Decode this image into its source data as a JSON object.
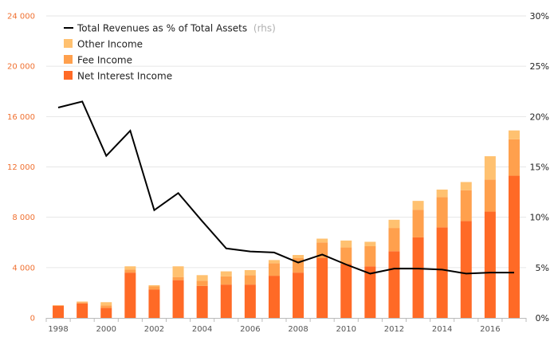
{
  "chart_data": {
    "type": "bar",
    "stacked": true,
    "x": [
      "1998",
      "1999",
      "2000",
      "2001",
      "2002",
      "2003",
      "2004",
      "2005",
      "2006",
      "2007",
      "2008",
      "2009",
      "2010",
      "2011",
      "2012",
      "2013",
      "2014",
      "2015",
      "2016",
      "2017"
    ],
    "x_tick_labels": [
      "1998",
      "2000",
      "2002",
      "2004",
      "2006",
      "2008",
      "2010",
      "2012",
      "2014",
      "2016"
    ],
    "series": [
      {
        "name": "Net Interest Income",
        "color": "#ff6a26",
        "values": [
          950,
          1150,
          800,
          3600,
          2250,
          3000,
          2550,
          2650,
          2650,
          3350,
          3600,
          4750,
          4300,
          4100,
          5300,
          6400,
          7200,
          7700,
          8450,
          11300
        ]
      },
      {
        "name": "Fee Income",
        "color": "#ffa04d",
        "values": [
          50,
          100,
          200,
          250,
          250,
          250,
          400,
          650,
          750,
          1000,
          1150,
          1250,
          1300,
          1600,
          1850,
          2200,
          2400,
          2450,
          2550,
          2900
        ]
      },
      {
        "name": "Other Income",
        "color": "#ffc170",
        "values": [
          0,
          50,
          250,
          250,
          100,
          850,
          450,
          400,
          400,
          250,
          250,
          300,
          550,
          350,
          650,
          700,
          600,
          650,
          1850,
          700
        ]
      }
    ],
    "line_series": {
      "name": "Total Revenues as % of Total Assets",
      "legend_suffix": "(rhs)",
      "axis": "right",
      "color": "#000000",
      "values": [
        20.9,
        21.5,
        16.1,
        18.6,
        10.7,
        12.4,
        9.6,
        6.9,
        6.6,
        6.5,
        5.5,
        6.3,
        5.3,
        4.4,
        4.9,
        4.9,
        4.8,
        4.4,
        4.5,
        4.5
      ]
    },
    "y_left": {
      "min": 0,
      "max": 24000,
      "ticks": [
        "0",
        "4 000",
        "8 000",
        "12 000",
        "16 000",
        "20 000",
        "24 000"
      ],
      "tick_values": [
        0,
        4000,
        8000,
        12000,
        16000,
        20000,
        24000
      ]
    },
    "y_right": {
      "min": 0,
      "max": 30,
      "ticks": [
        "0%",
        "5%",
        "10%",
        "15%",
        "20%",
        "25%",
        "30%"
      ],
      "tick_values": [
        0,
        5,
        10,
        15,
        20,
        25,
        30
      ]
    },
    "grid": true,
    "legend_placement": "top-left",
    "colors": {
      "left_ticks": "#f07030",
      "line": "#000000",
      "grid": "#e6e6e6"
    }
  }
}
